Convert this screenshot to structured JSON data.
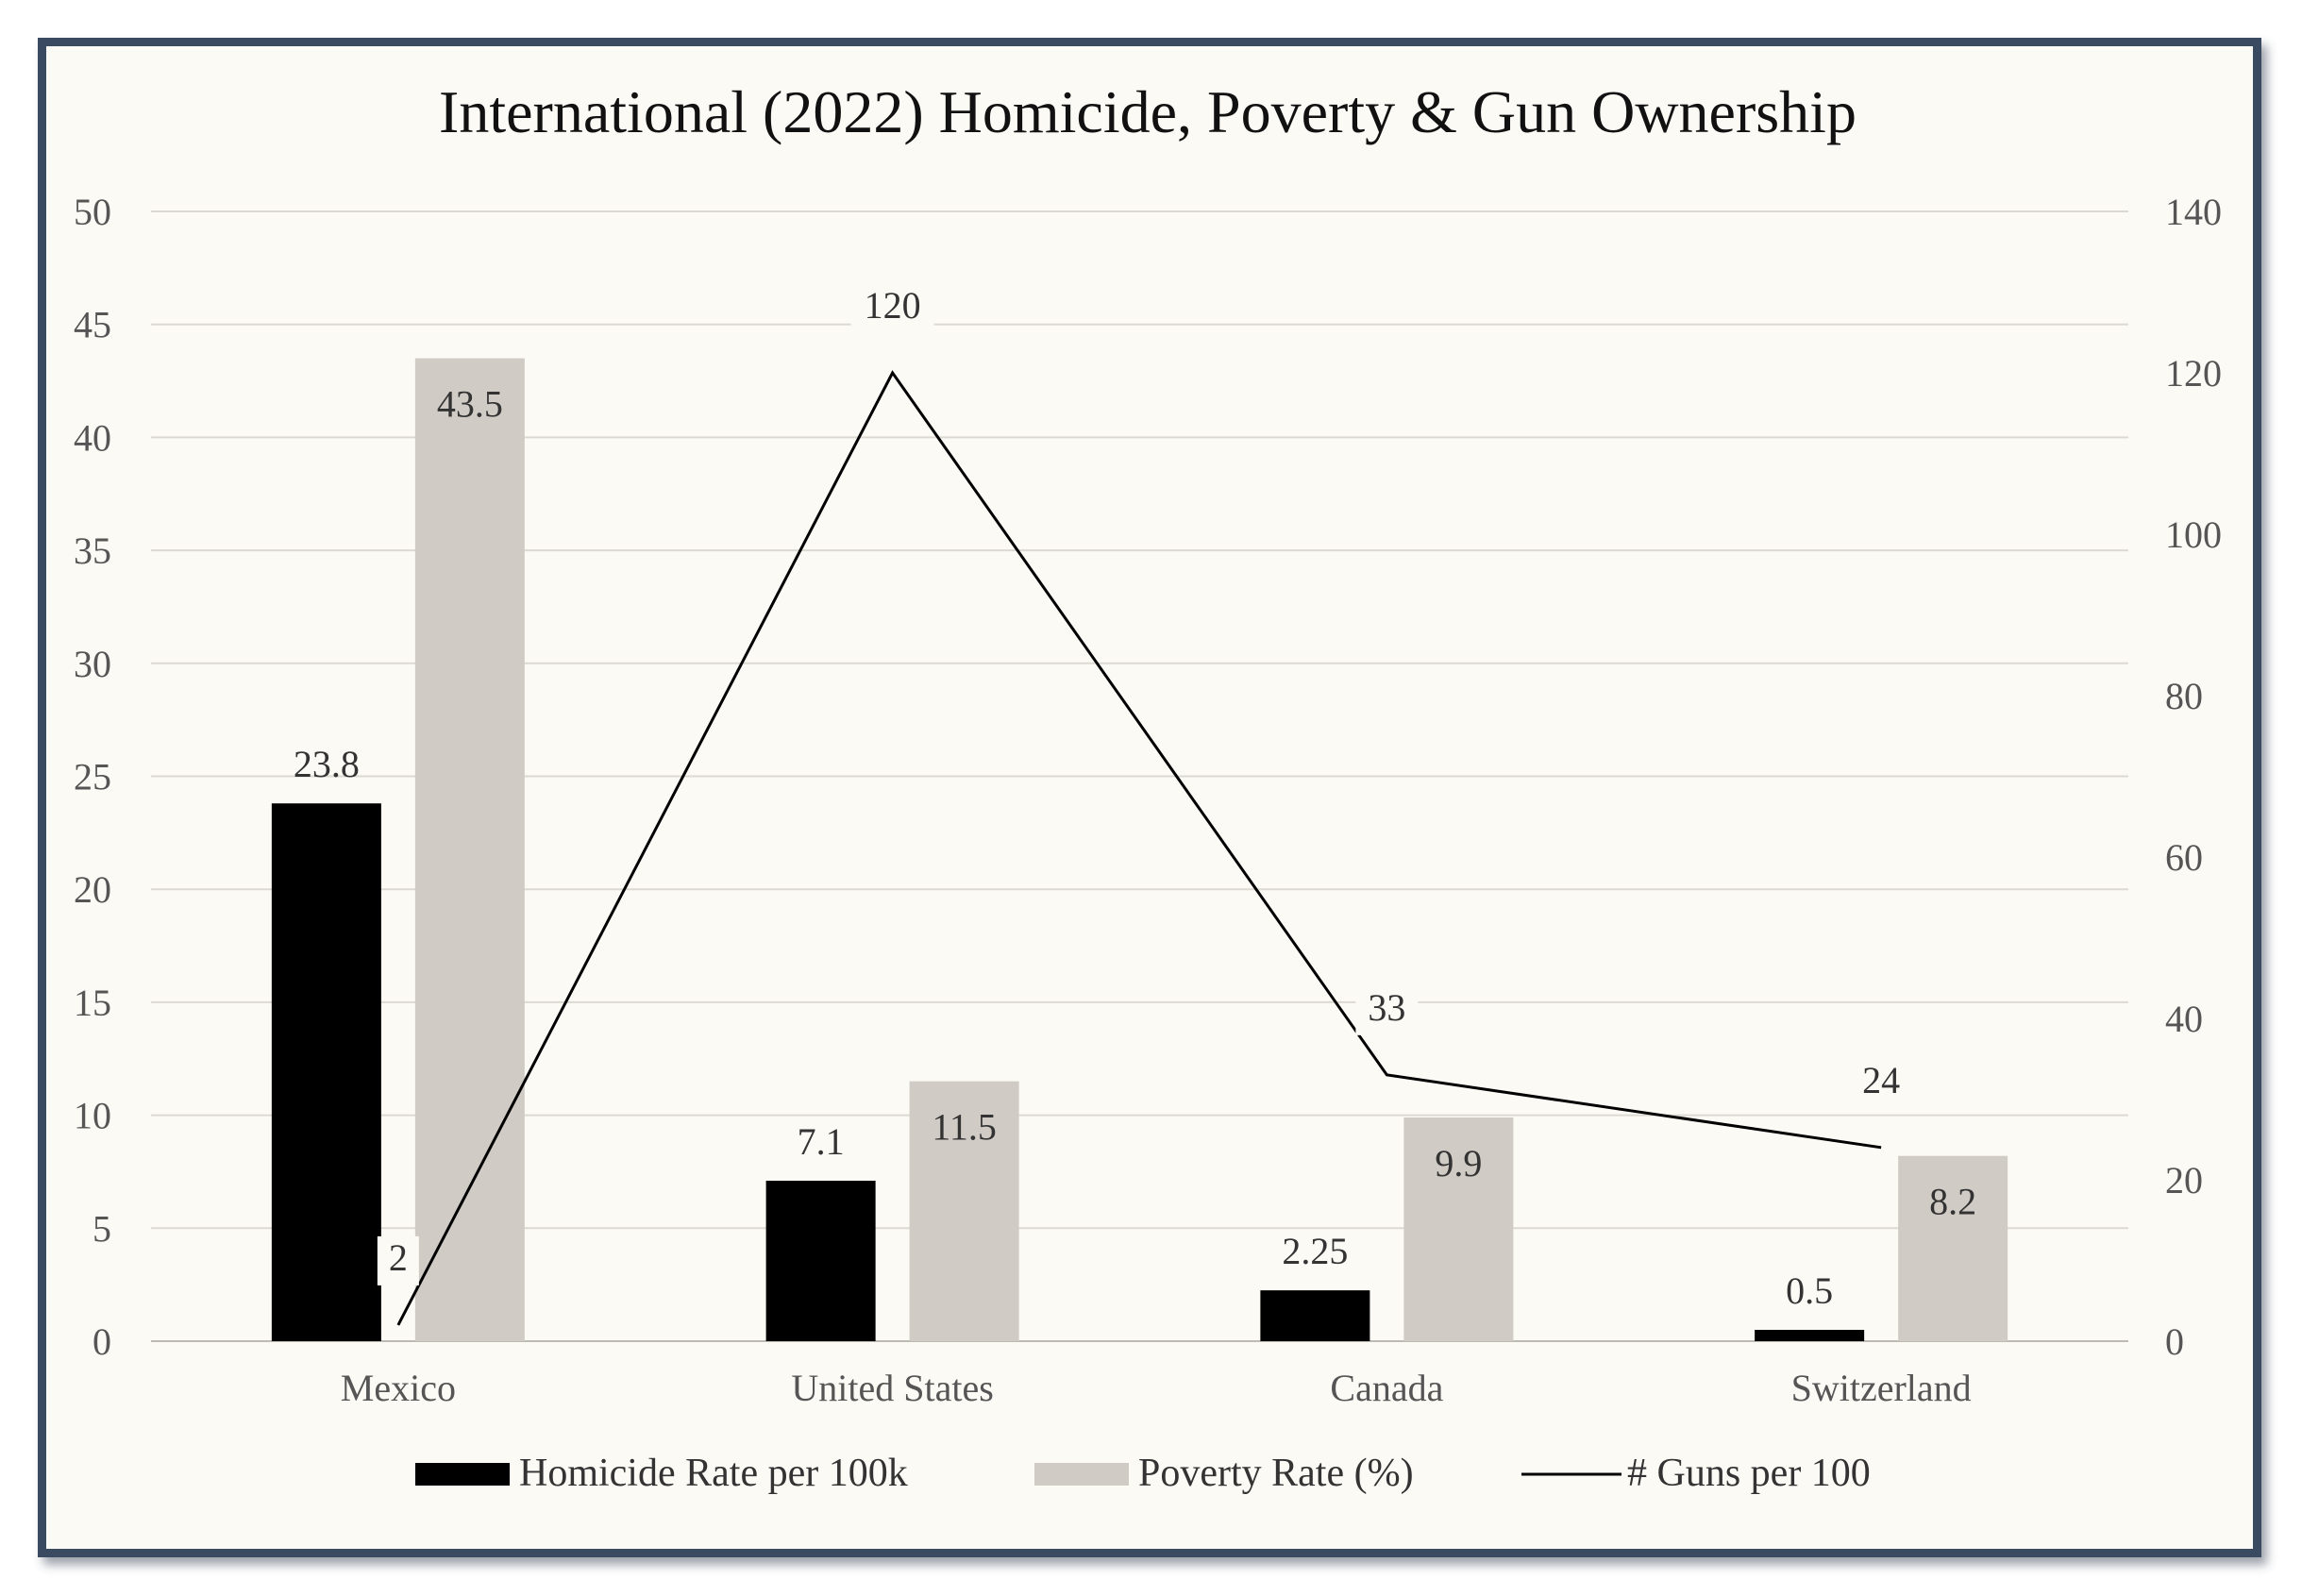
{
  "chart_data": {
    "type": "bar",
    "title": "International (2022) Homicide, Poverty & Gun Ownership",
    "categories": [
      "Mexico",
      "United States",
      "Canada",
      "Switzerland"
    ],
    "series": [
      {
        "name": "Homicide Rate per 100k",
        "kind": "bar",
        "axis": "left",
        "color": "#000000",
        "values": [
          23.8,
          7.1,
          2.25,
          0.5
        ],
        "labels": [
          "23.8",
          "7.1",
          "2.25",
          "0.5"
        ]
      },
      {
        "name": "Poverty Rate (%)",
        "kind": "bar",
        "axis": "left",
        "color": "#d0cbc5",
        "values": [
          43.5,
          11.5,
          9.9,
          8.2
        ],
        "labels": [
          "43.5",
          "11.5",
          "9.9",
          "8.2"
        ]
      },
      {
        "name": "# Guns per 100",
        "kind": "line",
        "axis": "right",
        "color": "#000000",
        "values": [
          2,
          120,
          33,
          24
        ],
        "labels": [
          "2",
          "120",
          "33",
          "24"
        ]
      }
    ],
    "y_left": {
      "min": 0,
      "max": 50,
      "step": 5,
      "ticks": [
        "0",
        "5",
        "10",
        "15",
        "20",
        "25",
        "30",
        "35",
        "40",
        "45",
        "50"
      ]
    },
    "y_right": {
      "min": 0,
      "max": 140,
      "step": 20,
      "ticks": [
        "0",
        "20",
        "40",
        "60",
        "80",
        "100",
        "120",
        "140"
      ]
    },
    "grid": true,
    "legend": "bottom"
  }
}
